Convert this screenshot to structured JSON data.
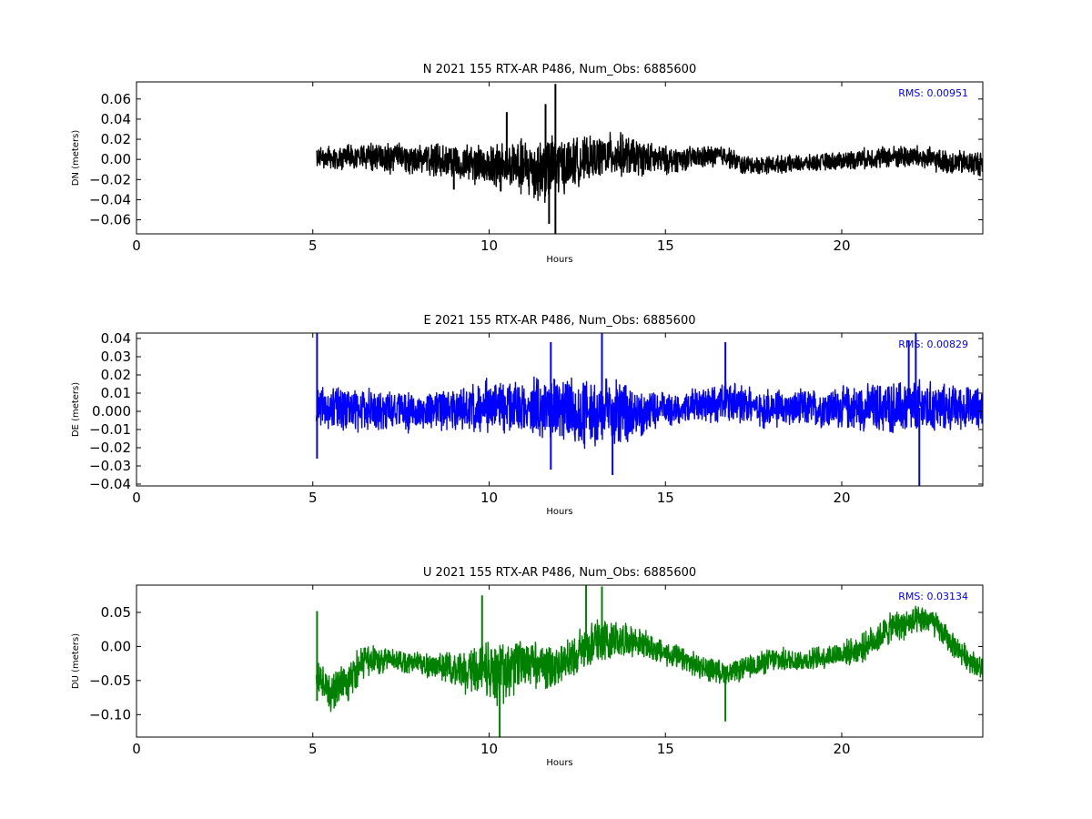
{
  "chart_data": [
    {
      "type": "line",
      "title": "N 2021 155 RTX-AR  P486, Num_Obs: 6885600",
      "xlabel": "Hours",
      "ylabel": "DN (meters)",
      "xlim": [
        0,
        24
      ],
      "ylim": [
        -0.074,
        0.077
      ],
      "xticks": [
        0,
        5,
        10,
        15,
        20
      ],
      "yticks": [
        -0.06,
        -0.04,
        -0.02,
        0.0,
        0.02,
        0.04,
        0.06
      ],
      "ytick_labels": [
        "−0.06",
        "−0.04",
        "−0.02",
        "0.00",
        "0.02",
        "0.04",
        "0.06"
      ],
      "annotation": "RMS:  0.00951",
      "annotation_color": "#0000ff",
      "series": [
        {
          "color": "#000000",
          "x_start": 5.1,
          "x_end": 24,
          "center": [
            [
              5.1,
              0.002
            ],
            [
              7,
              0.002
            ],
            [
              9,
              -0.002
            ],
            [
              10.5,
              -0.008
            ],
            [
              11.5,
              -0.01
            ],
            [
              12.5,
              -0.002
            ],
            [
              13.5,
              0.005
            ],
            [
              15,
              -0.001
            ],
            [
              16.7,
              0.004
            ],
            [
              17.2,
              -0.006
            ],
            [
              19,
              -0.004
            ],
            [
              21,
              0.002
            ],
            [
              22,
              0.003
            ],
            [
              23,
              -0.003
            ],
            [
              24,
              -0.004
            ]
          ],
          "amplitude": [
            [
              5.1,
              0.012
            ],
            [
              6,
              0.013
            ],
            [
              7,
              0.017
            ],
            [
              8,
              0.016
            ],
            [
              9,
              0.019
            ],
            [
              10,
              0.024
            ],
            [
              11,
              0.033
            ],
            [
              11.5,
              0.038
            ],
            [
              12.3,
              0.028
            ],
            [
              13,
              0.022
            ],
            [
              13.6,
              0.025
            ],
            [
              14.5,
              0.018
            ],
            [
              15.5,
              0.013
            ],
            [
              16.7,
              0.012
            ],
            [
              17.5,
              0.01
            ],
            [
              19,
              0.009
            ],
            [
              20,
              0.01
            ],
            [
              21,
              0.012
            ],
            [
              22,
              0.013
            ],
            [
              23,
              0.013
            ],
            [
              24,
              0.014
            ]
          ],
          "spikes": [
            [
              11.88,
              0.075
            ],
            [
              11.88,
              -0.074
            ],
            [
              11.7,
              -0.064
            ],
            [
              10.5,
              0.047
            ],
            [
              11.6,
              0.055
            ],
            [
              9.0,
              -0.03
            ]
          ]
        }
      ]
    },
    {
      "type": "line",
      "title": "E 2021 155 RTX-AR  P486, Num_Obs: 6885600",
      "xlabel": "Hours",
      "ylabel": "DE (meters)",
      "xlim": [
        0,
        24
      ],
      "ylim": [
        -0.041,
        0.043
      ],
      "xticks": [
        0,
        5,
        10,
        15,
        20
      ],
      "yticks": [
        -0.04,
        -0.03,
        -0.02,
        -0.01,
        0.0,
        0.01,
        0.02,
        0.03,
        0.04
      ],
      "ytick_labels": [
        "−0.04",
        "−0.03",
        "−0.02",
        "−0.01",
        "0.000",
        "0.01",
        "0.02",
        "0.03",
        "0.04"
      ],
      "annotation": "RMS:  0.00829",
      "annotation_color": "#0000ff",
      "series": [
        {
          "color": "#0000ff",
          "x_start": 5.1,
          "x_end": 24,
          "center": [
            [
              5.1,
              0.002
            ],
            [
              8,
              0.0
            ],
            [
              10,
              0.003
            ],
            [
              11.5,
              0.002
            ],
            [
              13.5,
              -0.002
            ],
            [
              15,
              0.001
            ],
            [
              16.8,
              0.005
            ],
            [
              18,
              0.001
            ],
            [
              20,
              0.002
            ],
            [
              22,
              0.002
            ],
            [
              24,
              0.002
            ]
          ],
          "amplitude": [
            [
              5.1,
              0.012
            ],
            [
              6,
              0.014
            ],
            [
              7,
              0.013
            ],
            [
              8,
              0.012
            ],
            [
              9,
              0.013
            ],
            [
              10,
              0.016
            ],
            [
              11,
              0.017
            ],
            [
              12,
              0.019
            ],
            [
              13,
              0.021
            ],
            [
              13.5,
              0.022
            ],
            [
              14.5,
              0.012
            ],
            [
              15.5,
              0.009
            ],
            [
              16.7,
              0.013
            ],
            [
              17.5,
              0.012
            ],
            [
              18.5,
              0.011
            ],
            [
              19.5,
              0.012
            ],
            [
              20.5,
              0.014
            ],
            [
              21.5,
              0.016
            ],
            [
              22.2,
              0.017
            ],
            [
              23,
              0.014
            ],
            [
              24,
              0.012
            ]
          ],
          "spikes": [
            [
              5.12,
              0.043
            ],
            [
              5.12,
              -0.026
            ],
            [
              11.75,
              0.038
            ],
            [
              11.75,
              -0.032
            ],
            [
              13.2,
              0.043
            ],
            [
              13.5,
              -0.035
            ],
            [
              16.7,
              0.038
            ],
            [
              22.1,
              0.043
            ],
            [
              22.2,
              -0.041
            ],
            [
              21.9,
              0.039
            ]
          ]
        }
      ]
    },
    {
      "type": "line",
      "title": "U 2021 155 RTX-AR  P486, Num_Obs: 6885600",
      "xlabel": "Hours",
      "ylabel": "DU (meters)",
      "xlim": [
        0,
        24
      ],
      "ylim": [
        -0.133,
        0.09
      ],
      "xticks": [
        0,
        5,
        10,
        15,
        20
      ],
      "yticks": [
        -0.1,
        -0.05,
        0.0,
        0.05
      ],
      "ytick_labels": [
        "−0.10",
        "−0.05",
        "0.00",
        "0.05"
      ],
      "annotation": "RMS:  0.03134",
      "annotation_color": "#0000ff",
      "series": [
        {
          "color": "#008000",
          "x_start": 5.1,
          "x_end": 24,
          "center": [
            [
              5.1,
              -0.04
            ],
            [
              5.5,
              -0.07
            ],
            [
              6,
              -0.05
            ],
            [
              6.5,
              -0.02
            ],
            [
              7.5,
              -0.02
            ],
            [
              8.5,
              -0.03
            ],
            [
              9.5,
              -0.035
            ],
            [
              10.2,
              -0.04
            ],
            [
              11,
              -0.025
            ],
            [
              12,
              -0.03
            ],
            [
              13,
              0.01
            ],
            [
              14,
              0.01
            ],
            [
              15,
              -0.01
            ],
            [
              16,
              -0.03
            ],
            [
              16.8,
              -0.04
            ],
            [
              18,
              -0.02
            ],
            [
              19,
              -0.02
            ],
            [
              20.5,
              -0.005
            ],
            [
              21.5,
              0.03
            ],
            [
              22.5,
              0.04
            ],
            [
              23.2,
              0.0
            ],
            [
              24,
              -0.035
            ]
          ],
          "amplitude": [
            [
              5.1,
              0.025
            ],
            [
              6,
              0.035
            ],
            [
              7,
              0.022
            ],
            [
              8,
              0.02
            ],
            [
              9,
              0.025
            ],
            [
              9.5,
              0.045
            ],
            [
              10.2,
              0.052
            ],
            [
              11,
              0.04
            ],
            [
              12,
              0.035
            ],
            [
              13,
              0.04
            ],
            [
              14,
              0.025
            ],
            [
              15,
              0.02
            ],
            [
              16,
              0.02
            ],
            [
              17,
              0.018
            ],
            [
              18,
              0.02
            ],
            [
              19,
              0.018
            ],
            [
              20,
              0.02
            ],
            [
              21,
              0.025
            ],
            [
              22,
              0.025
            ],
            [
              23,
              0.02
            ],
            [
              24,
              0.02
            ]
          ],
          "spikes": [
            [
              5.12,
              0.052
            ],
            [
              5.12,
              -0.08
            ],
            [
              16.7,
              -0.11
            ],
            [
              10.3,
              -0.133
            ],
            [
              12.75,
              0.09
            ],
            [
              13.2,
              0.088
            ],
            [
              9.8,
              0.075
            ]
          ]
        }
      ]
    }
  ]
}
